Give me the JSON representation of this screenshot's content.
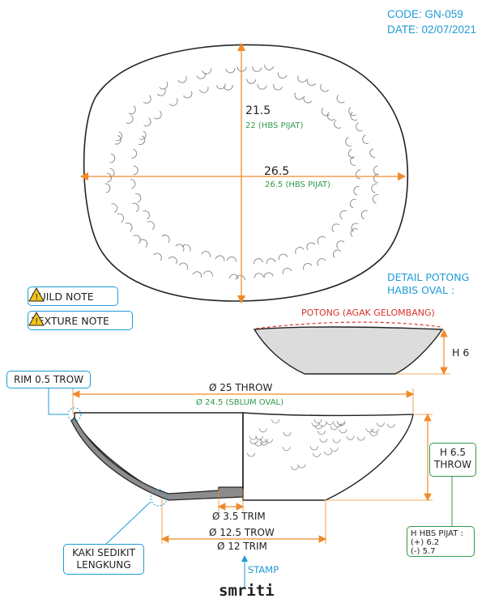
{
  "header": {
    "code": "CODE: GN-059",
    "date": "DATE: 02/07/2021"
  },
  "top_view": {
    "height_dim": "21.5",
    "height_dim_note": "22 (HBS PIJAT)",
    "width_dim": "26.5",
    "width_dim_note": "26.5 (HBS PIJAT)"
  },
  "notes": {
    "build": "BUILD NOTE",
    "texture": "TEXTURE NOTE"
  },
  "detail": {
    "title_line1": "DETAIL POTONG",
    "title_line2": "HABIS OVAL :",
    "cut_label": "POTONG (AGAK GELOMBANG)",
    "height": "H 6"
  },
  "side_view": {
    "rim_label": "RIM 0.5 TROW",
    "throw_dia": "Ø 25 THROW",
    "throw_dia_note": "Ø 24.5 (SBLUM OVAL)",
    "height_line1": "H 6.5",
    "height_line2": "THROW",
    "foot_trim": "Ø 3.5 TRIM",
    "base_trow": "Ø 12.5 TROW",
    "base_trim": "Ø 12 TRIM",
    "foot_note_line1": "KAKI SEDIKIT",
    "foot_note_line2": "LENGKUNG",
    "hbs_title": "H HBS PIJAT :",
    "hbs_plus": "(+) 6.2",
    "hbs_minus": "(-) 5.7",
    "stamp_label": "STAMP",
    "stamp_logo": "smriti"
  },
  "colors": {
    "accent": "#1f9bd7",
    "dimension": "#ef8b2c",
    "note": "#2f9a4b",
    "cut": "#d7332c",
    "section_fill": "#8c8c8c"
  }
}
